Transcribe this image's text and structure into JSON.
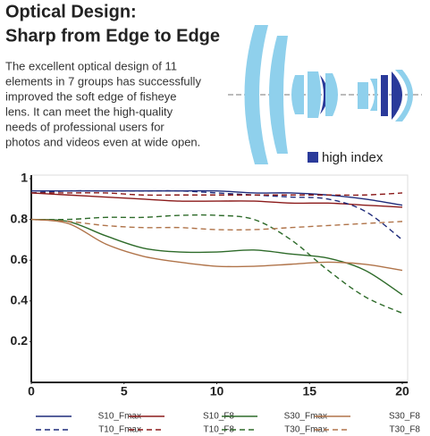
{
  "header": {
    "title": [
      "Optical Design:",
      "Sharp from Edge to Edge"
    ],
    "paragraph": [
      "The excellent optical design of 11",
      "elements in 7 groups has successfully",
      "improved the soft edge of fisheye",
      "lens. It can meet the high-quality",
      "needs of professional users for",
      "photos and videos even at wide open."
    ]
  },
  "lens_legend": "high index",
  "chart_data": {
    "type": "line",
    "x": [
      0,
      2,
      4,
      6,
      8,
      10,
      12,
      14,
      16,
      18,
      20
    ],
    "xlim": [
      0,
      20
    ],
    "xticks": [
      0,
      5,
      10,
      15,
      20
    ],
    "ylim": [
      0,
      1
    ],
    "yticks": [
      0.2,
      0.4,
      0.6,
      0.8,
      1
    ],
    "series": [
      {
        "name": "S10_Fmax",
        "color": "#1f2b7a",
        "dashed": false,
        "values": [
          0.94,
          0.94,
          0.94,
          0.94,
          0.94,
          0.94,
          0.93,
          0.93,
          0.92,
          0.9,
          0.87
        ]
      },
      {
        "name": "S10_F8",
        "color": "#8b1a1a",
        "dashed": false,
        "values": [
          0.93,
          0.92,
          0.91,
          0.9,
          0.89,
          0.89,
          0.89,
          0.88,
          0.88,
          0.87,
          0.86
        ]
      },
      {
        "name": "S30_Fmax",
        "color": "#2e6b2a",
        "dashed": false,
        "values": [
          0.8,
          0.79,
          0.72,
          0.66,
          0.64,
          0.64,
          0.65,
          0.63,
          0.61,
          0.55,
          0.43
        ]
      },
      {
        "name": "S30_F8",
        "color": "#b0744a",
        "dashed": false,
        "values": [
          0.8,
          0.78,
          0.68,
          0.62,
          0.59,
          0.57,
          0.57,
          0.58,
          0.59,
          0.58,
          0.55
        ]
      },
      {
        "name": "T10_Fmax",
        "color": "#1f2b7a",
        "dashed": true,
        "values": [
          0.93,
          0.94,
          0.94,
          0.94,
          0.94,
          0.93,
          0.92,
          0.91,
          0.9,
          0.84,
          0.7
        ]
      },
      {
        "name": "T10_F8",
        "color": "#8b1a1a",
        "dashed": true,
        "values": [
          0.93,
          0.93,
          0.93,
          0.92,
          0.92,
          0.92,
          0.92,
          0.92,
          0.92,
          0.92,
          0.93
        ]
      },
      {
        "name": "T30_Fmax",
        "color": "#2e6b2a",
        "dashed": true,
        "values": [
          0.8,
          0.8,
          0.81,
          0.81,
          0.82,
          0.82,
          0.8,
          0.7,
          0.55,
          0.42,
          0.34
        ]
      },
      {
        "name": "T30_F8",
        "color": "#b0744a",
        "dashed": true,
        "values": [
          0.8,
          0.79,
          0.77,
          0.76,
          0.76,
          0.75,
          0.75,
          0.76,
          0.77,
          0.78,
          0.79
        ]
      }
    ]
  }
}
